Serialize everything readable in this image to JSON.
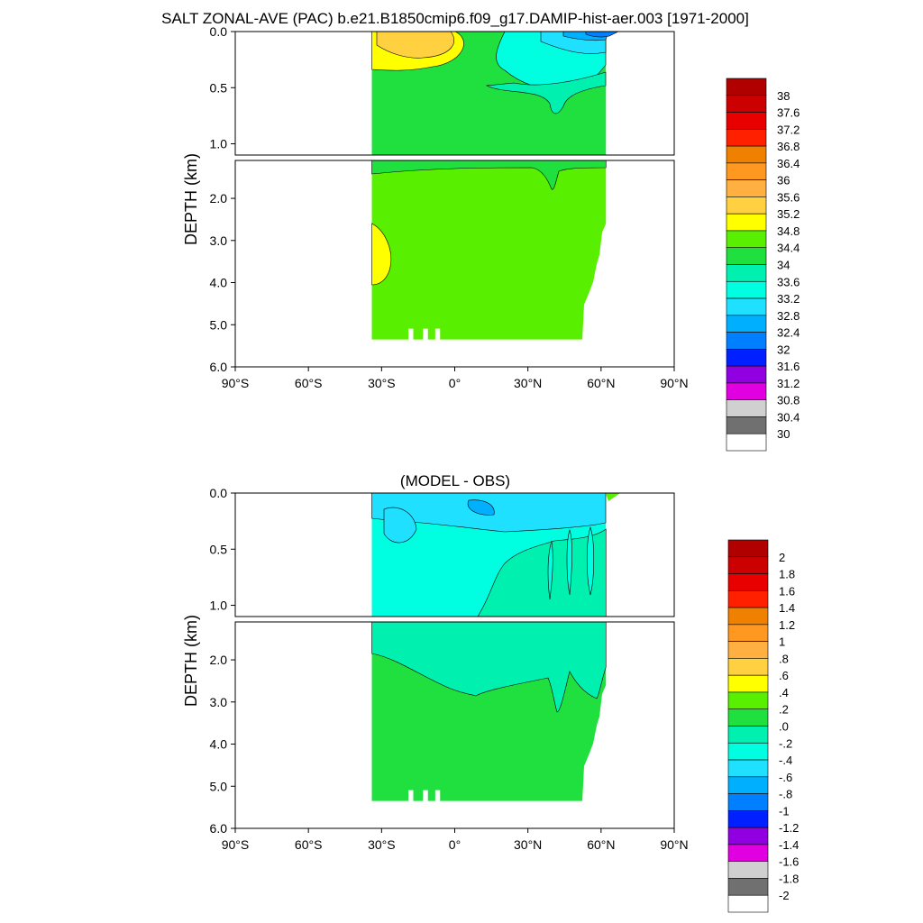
{
  "title": "SALT ZONAL-AVE (PAC) b.e21.B1850cmip6.f09_g17.DAMIP-hist-aer.003 [1971-2000]",
  "chart_data": [
    {
      "type": "contour",
      "title": "SALT ZONAL-AVE (PAC) b.e21.B1850cmip6.f09_g17.DAMIP-hist-aer.003 [1971-2000]",
      "ylabel": "DEPTH (km)",
      "xlabel": "",
      "x_ticks": [
        "90°S",
        "60°S",
        "30°S",
        "0°",
        "30°N",
        "60°N",
        "90°N"
      ],
      "upper_y_ticks": [
        "0.0",
        "0.5",
        "1.0"
      ],
      "lower_y_ticks": [
        "2.0",
        "3.0",
        "4.0",
        "5.0",
        "6.0"
      ],
      "xlim_deg": [
        -90,
        90
      ],
      "upper_ylim_km": [
        0.0,
        1.1
      ],
      "lower_ylim_km": [
        1.1,
        6.0
      ],
      "colorbar_labels": [
        "38",
        "37.6",
        "37.2",
        "36.8",
        "36.4",
        "36",
        "35.6",
        "35.2",
        "34.8",
        "34.4",
        "34",
        "33.6",
        "33.2",
        "32.8",
        "32.4",
        "32",
        "31.6",
        "31.2",
        "30.8",
        "30.4",
        "30"
      ],
      "colorbar_colors": [
        "#b00000",
        "#cc0000",
        "#e80000",
        "#ff2000",
        "#f08000",
        "#ff9820",
        "#ffb040",
        "#ffd040",
        "#ffff00",
        "#58f000",
        "#20e040",
        "#00f0b0",
        "#00ffe0",
        "#20e0ff",
        "#00b0ff",
        "#0080ff",
        "#0020ff",
        "#9000e0",
        "#e000e0",
        "#d0d0d0",
        "#707070",
        "#ffffff"
      ],
      "dominant_value_range": [
        34.4,
        34.8
      ],
      "data_extent_lat_deg": [
        -34,
        62
      ]
    },
    {
      "type": "contour",
      "title": "(MODEL - OBS)",
      "ylabel": "DEPTH (km)",
      "xlabel": "",
      "x_ticks": [
        "90°S",
        "60°S",
        "30°S",
        "0°",
        "30°N",
        "60°N",
        "90°N"
      ],
      "upper_y_ticks": [
        "0.0",
        "0.5",
        "1.0"
      ],
      "lower_y_ticks": [
        "2.0",
        "3.0",
        "4.0",
        "5.0",
        "6.0"
      ],
      "xlim_deg": [
        -90,
        90
      ],
      "upper_ylim_km": [
        0.0,
        1.1
      ],
      "lower_ylim_km": [
        1.1,
        6.0
      ],
      "colorbar_labels": [
        "2",
        "1.8",
        "1.6",
        "1.4",
        "1.2",
        "1",
        ".8",
        ".6",
        ".4",
        ".2",
        ".0",
        "-.2",
        "-.4",
        "-.6",
        "-.8",
        "-1",
        "-1.2",
        "-1.4",
        "-1.6",
        "-1.8",
        "-2"
      ],
      "colorbar_colors": [
        "#b00000",
        "#cc0000",
        "#e80000",
        "#ff2000",
        "#f08000",
        "#ff9820",
        "#ffb040",
        "#ffd040",
        "#ffff00",
        "#58f000",
        "#20e040",
        "#00f0b0",
        "#00ffe0",
        "#20e0ff",
        "#00b0ff",
        "#0080ff",
        "#0020ff",
        "#9000e0",
        "#e000e0",
        "#d0d0d0",
        "#707070",
        "#ffffff"
      ],
      "data_extent_lat_deg": [
        -34,
        62
      ]
    }
  ]
}
